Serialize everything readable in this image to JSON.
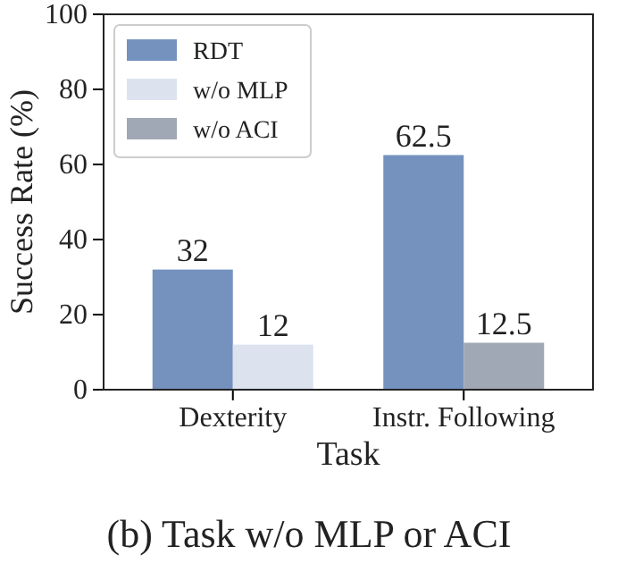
{
  "chart_data": {
    "type": "bar",
    "title": "(b) Task w/o MLP or ACI",
    "xlabel": "Task",
    "ylabel": "Success Rate (%)",
    "categories": [
      "Dexterity",
      "Instr. Following"
    ],
    "series": [
      {
        "name": "RDT",
        "color": "#7592bf",
        "values": [
          32,
          62.5
        ]
      },
      {
        "name": "w/o MLP",
        "color": "#dce3ef",
        "values": [
          12,
          null
        ]
      },
      {
        "name": "w/o ACI",
        "color": "#a0a8b5",
        "values": [
          null,
          12.5
        ]
      }
    ],
    "ylim": [
      0,
      100
    ],
    "yticks": [
      0,
      20,
      40,
      60,
      80,
      100
    ],
    "data_labels": true,
    "legend": "top left",
    "grid": false
  }
}
